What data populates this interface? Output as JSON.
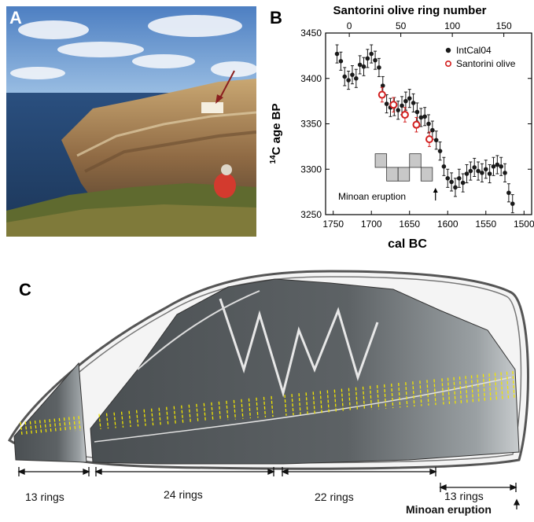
{
  "panels": {
    "a": {
      "letter": "A"
    },
    "b": {
      "letter": "B"
    },
    "c": {
      "letter": "C"
    }
  },
  "chart_data": {
    "type": "scatter",
    "top_axis_label": "Santorini olive ring number",
    "top_ticks": [
      "0",
      "50",
      "100",
      "150"
    ],
    "xlabel": "cal BC",
    "ylabel_superscript": "14",
    "ylabel": "C age BP",
    "x_ticks": [
      "1750",
      "1700",
      "1650",
      "1600",
      "1550",
      "1500"
    ],
    "y_ticks": [
      "3450",
      "3400",
      "3350",
      "3300",
      "3250"
    ],
    "xlim": [
      1760,
      1490
    ],
    "ylim": [
      3250,
      3450
    ],
    "top_xlim": [
      -23,
      177
    ],
    "legend_position": "top-right",
    "annotation": "Minoan eruption",
    "series": [
      {
        "name": "IntCal04",
        "color": "#1a1a1a",
        "x": [
          1745,
          1740,
          1735,
          1730,
          1725,
          1720,
          1715,
          1710,
          1705,
          1700,
          1695,
          1690,
          1685,
          1680,
          1675,
          1670,
          1665,
          1660,
          1655,
          1650,
          1645,
          1640,
          1635,
          1630,
          1625,
          1620,
          1615,
          1610,
          1605,
          1600,
          1595,
          1590,
          1585,
          1580,
          1575,
          1570,
          1565,
          1560,
          1555,
          1550,
          1545,
          1540,
          1535,
          1530,
          1525,
          1520,
          1515
        ],
        "y": [
          3427,
          3419,
          3402,
          3398,
          3404,
          3400,
          3415,
          3413,
          3422,
          3427,
          3420,
          3412,
          3392,
          3372,
          3368,
          3369,
          3365,
          3370,
          3375,
          3378,
          3373,
          3363,
          3357,
          3358,
          3350,
          3343,
          3332,
          3320,
          3303,
          3290,
          3286,
          3280,
          3290,
          3285,
          3295,
          3298,
          3302,
          3298,
          3296,
          3300,
          3295,
          3303,
          3305,
          3303,
          3296,
          3274,
          3262
        ],
        "error": 10
      },
      {
        "name": "Santorini olive",
        "color": "#d21f1f",
        "x": [
          1686,
          1671,
          1656,
          1641,
          1624
        ],
        "y": [
          3382,
          3371,
          3360,
          3349,
          3333
        ],
        "error": 8
      }
    ],
    "eruption_blocks": [
      {
        "x0": 1695,
        "x1": 1680,
        "row": 0
      },
      {
        "x0": 1680,
        "x1": 1665,
        "row": 1
      },
      {
        "x0": 1665,
        "x1": 1650,
        "row": 1
      },
      {
        "x0": 1650,
        "x1": 1635,
        "row": 0
      },
      {
        "x0": 1635,
        "x1": 1620,
        "row": 1
      }
    ],
    "arrow_x": 1616
  },
  "wood_section": {
    "segments": [
      {
        "label": "13 rings"
      },
      {
        "label": "24 rings"
      },
      {
        "label": "22 rings"
      },
      {
        "label": "13 rings"
      }
    ],
    "eruption_label": "Minoan eruption"
  }
}
